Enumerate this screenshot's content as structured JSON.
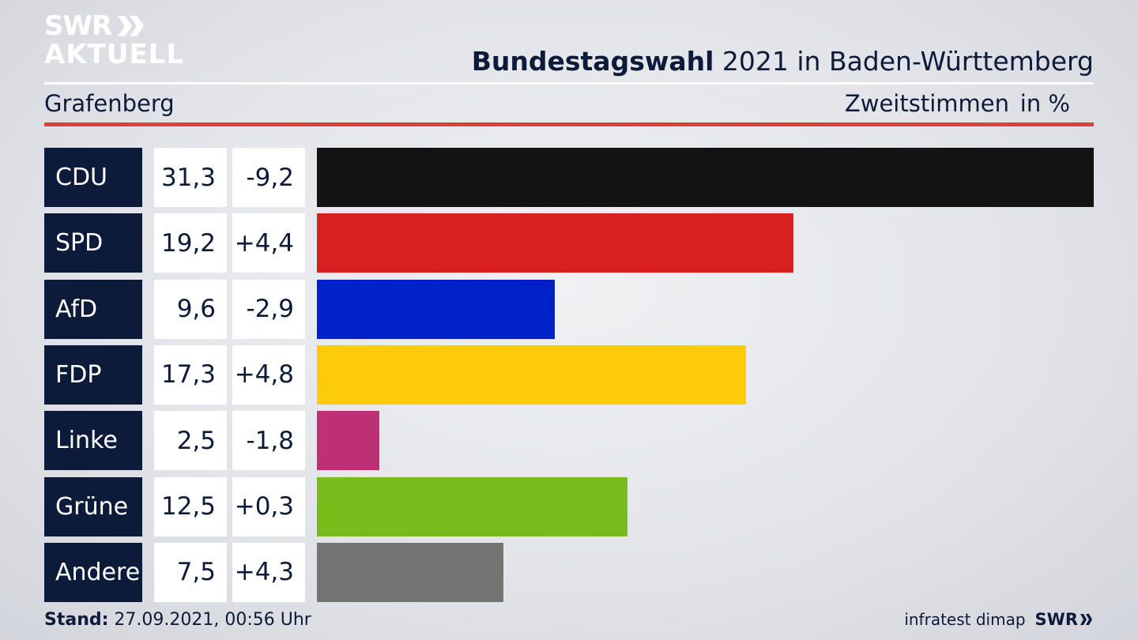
{
  "header": {
    "logo_line1": "SWR",
    "logo_line2": "AKTUELL",
    "title_bold": "Bundestagswahl",
    "title_rest": " 2021 in Baden-Württemberg",
    "region": "Grafenberg",
    "vote_type": "Zweitstimmen",
    "unit": "in %"
  },
  "footer": {
    "stand_label": "Stand:",
    "stand_value": " 27.09.2021, 00:56 Uhr",
    "source": "infratest dimap",
    "brand": "SWR"
  },
  "chart_data": {
    "type": "bar",
    "orientation": "horizontal",
    "categories": [
      "CDU",
      "SPD",
      "AfD",
      "FDP",
      "Linke",
      "Grüne",
      "Andere"
    ],
    "values": [
      31.3,
      19.2,
      9.6,
      17.3,
      2.5,
      12.5,
      7.5
    ],
    "value_labels": [
      "31,3",
      "19,2",
      "9,6",
      "17,3",
      "2,5",
      "12,5",
      "7,5"
    ],
    "diff_labels": [
      "-9,2",
      "+4,4",
      "-2,9",
      "+4,8",
      "-1,8",
      "+0,3",
      "+4,3"
    ],
    "colors": [
      "#131313",
      "#d82020",
      "#0021c8",
      "#fecb0b",
      "#be3075",
      "#78bc1b",
      "#737373"
    ],
    "title": "Bundestagswahl 2021 in Baden-Württemberg",
    "xlim": [
      0,
      31.3
    ],
    "grid": false
  }
}
